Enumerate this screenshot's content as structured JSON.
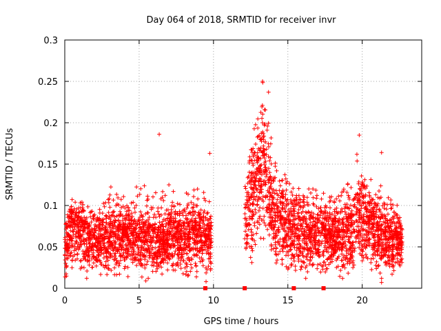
{
  "chart_data": {
    "type": "scatter",
    "title": "Day 064 of 2018, SRMTID for receiver invr",
    "xlabel": "GPS time / hours",
    "ylabel": "SRMTID / TECUs",
    "xlim": [
      0,
      24
    ],
    "ylim": [
      0,
      0.3
    ],
    "xticks": [
      0,
      5,
      10,
      15,
      20
    ],
    "xtick_labels": [
      "0",
      "5",
      "10",
      "15",
      "20"
    ],
    "yticks": [
      0,
      0.05,
      0.1,
      0.15,
      0.2,
      0.25,
      0.3
    ],
    "ytick_labels": [
      "0",
      "0.05",
      "0.1",
      "0.15",
      "0.2",
      "0.25",
      "0.3"
    ],
    "grid": true,
    "marker": "+",
    "color": "#ff0000",
    "gap_markers_x": [
      9.45,
      12.1,
      15.4,
      17.4
    ],
    "envelope": [
      {
        "x": 0.0,
        "center": 0.045,
        "spread": 0.02,
        "max": 0.07
      },
      {
        "x": 0.5,
        "center": 0.07,
        "spread": 0.025,
        "max": 0.12
      },
      {
        "x": 1.0,
        "center": 0.07,
        "spread": 0.025,
        "max": 0.11
      },
      {
        "x": 2.0,
        "center": 0.055,
        "spread": 0.02,
        "max": 0.09
      },
      {
        "x": 3.0,
        "center": 0.06,
        "spread": 0.025,
        "max": 0.125
      },
      {
        "x": 4.0,
        "center": 0.065,
        "spread": 0.025,
        "max": 0.11
      },
      {
        "x": 5.0,
        "center": 0.06,
        "spread": 0.025,
        "max": 0.13
      },
      {
        "x": 6.0,
        "center": 0.055,
        "spread": 0.025,
        "max": 0.12
      },
      {
        "x": 7.0,
        "center": 0.06,
        "spread": 0.025,
        "max": 0.125
      },
      {
        "x": 8.0,
        "center": 0.06,
        "spread": 0.025,
        "max": 0.12
      },
      {
        "x": 9.0,
        "center": 0.065,
        "spread": 0.025,
        "max": 0.13
      },
      {
        "x": 9.8,
        "center": 0.06,
        "spread": 0.02,
        "max": 0.115
      },
      {
        "x": 12.1,
        "center": 0.08,
        "spread": 0.03,
        "max": 0.12
      },
      {
        "x": 12.8,
        "center": 0.12,
        "spread": 0.04,
        "max": 0.2
      },
      {
        "x": 13.3,
        "center": 0.15,
        "spread": 0.05,
        "max": 0.25
      },
      {
        "x": 14.0,
        "center": 0.09,
        "spread": 0.035,
        "max": 0.17
      },
      {
        "x": 15.0,
        "center": 0.07,
        "spread": 0.03,
        "max": 0.13
      },
      {
        "x": 16.0,
        "center": 0.065,
        "spread": 0.03,
        "max": 0.12
      },
      {
        "x": 17.0,
        "center": 0.065,
        "spread": 0.028,
        "max": 0.12
      },
      {
        "x": 18.0,
        "center": 0.06,
        "spread": 0.025,
        "max": 0.11
      },
      {
        "x": 19.0,
        "center": 0.065,
        "spread": 0.028,
        "max": 0.13
      },
      {
        "x": 19.8,
        "center": 0.085,
        "spread": 0.035,
        "max": 0.18
      },
      {
        "x": 20.5,
        "center": 0.075,
        "spread": 0.03,
        "max": 0.14
      },
      {
        "x": 21.5,
        "center": 0.06,
        "spread": 0.025,
        "max": 0.12
      },
      {
        "x": 22.7,
        "center": 0.055,
        "spread": 0.02,
        "max": 0.1
      }
    ],
    "notable_points": [
      {
        "x": 6.35,
        "y": 0.186
      },
      {
        "x": 9.75,
        "y": 0.163
      },
      {
        "x": 13.3,
        "y": 0.25
      },
      {
        "x": 13.7,
        "y": 0.237
      },
      {
        "x": 19.8,
        "y": 0.185
      },
      {
        "x": 21.3,
        "y": 0.164
      },
      {
        "x": 21.3,
        "y": 0.007
      },
      {
        "x": 5.45,
        "y": 0.009
      },
      {
        "x": 9.5,
        "y": 0.008
      }
    ]
  }
}
